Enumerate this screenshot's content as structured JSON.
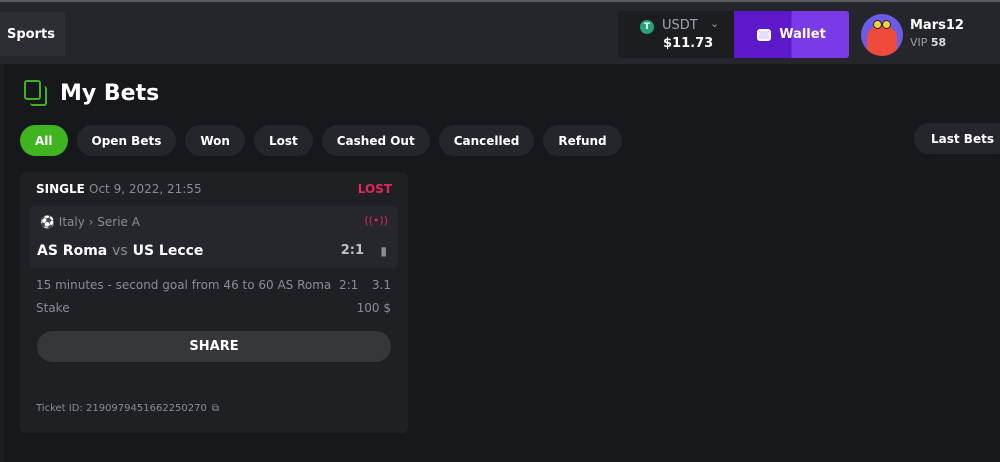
{
  "header": {
    "sports_label": "Sports",
    "currency": "USDT",
    "balance": "$11.73",
    "wallet_label": "Wallet",
    "username": "Mars12",
    "vip_label": "VIP",
    "vip_level": "58"
  },
  "page": {
    "title": "My Bets"
  },
  "tabs": [
    {
      "label": "All",
      "active": true
    },
    {
      "label": "Open Bets"
    },
    {
      "label": "Won"
    },
    {
      "label": "Lost"
    },
    {
      "label": "Cashed Out"
    },
    {
      "label": "Cancelled"
    },
    {
      "label": "Refund"
    }
  ],
  "last_bets_label": "Last Bets",
  "bet": {
    "type": "SINGLE",
    "date": "Oct 9, 2022, 21:55",
    "status": "LOST",
    "status_color": "#e5245b",
    "country": "Italy",
    "league": "Serie A",
    "home": "AS Roma",
    "vs": "vs",
    "away": "US Lecce",
    "score": "2:1",
    "market": "15 minutes - second goal from 46 to 60 AS Roma",
    "selection": "2:1",
    "odds": "3.1",
    "stake_label": "Stake",
    "stake": "100 $",
    "share_label": "SHARE",
    "ticket_label": "Ticket ID:",
    "ticket_id": "2190979451662250270"
  },
  "colors": {
    "accent": "#3fb420",
    "wallet": "#5d18c9"
  }
}
